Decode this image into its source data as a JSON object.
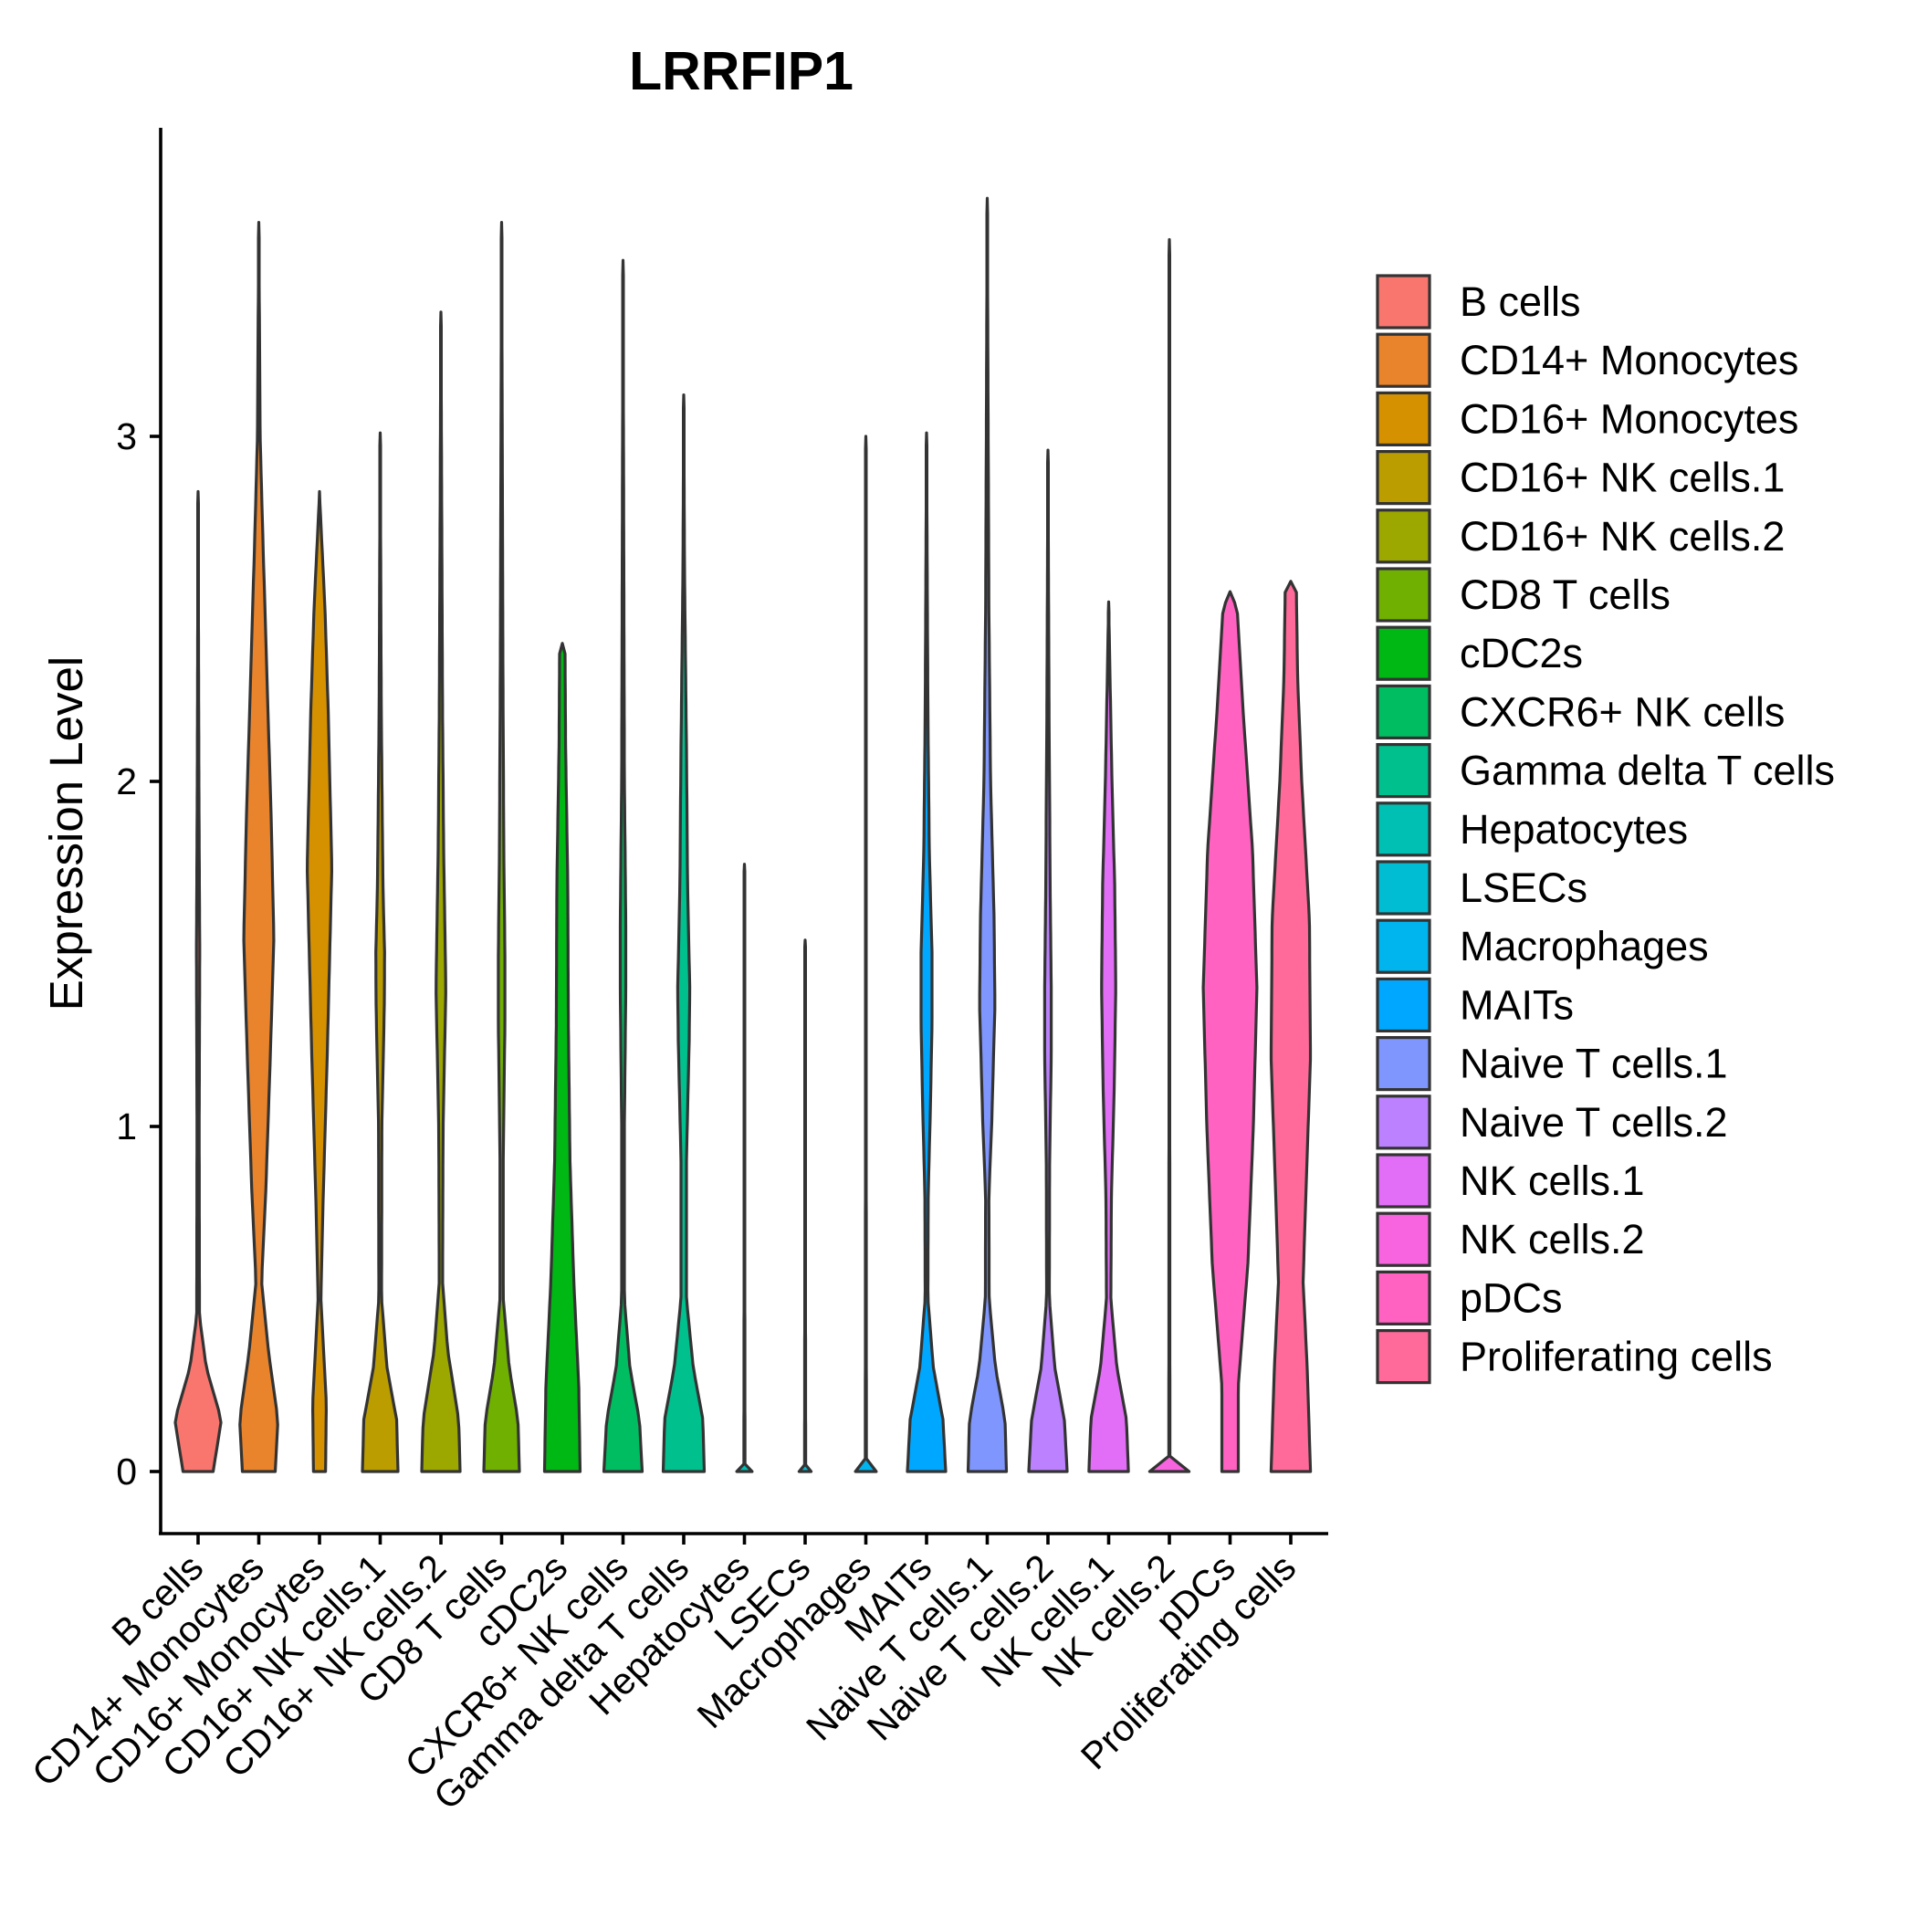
{
  "chart_data": {
    "type": "violin",
    "title": "LRRFIP1",
    "xlabel": "",
    "ylabel": "Expression Level",
    "ylim": [
      -0.18,
      3.8
    ],
    "yticks": [
      0,
      1,
      2,
      3
    ],
    "legend_position": "right",
    "categories": [
      {
        "name": "B cells",
        "color": "#F8766D",
        "max": 2.84,
        "profile": [
          [
            0,
            0.55
          ],
          [
            0.15,
            0.85
          ],
          [
            0.3,
            0.3
          ],
          [
            0.45,
            0.05
          ],
          [
            1.0,
            0.04
          ],
          [
            1.5,
            0.06
          ],
          [
            2.0,
            0.03
          ],
          [
            2.84,
            0
          ]
        ]
      },
      {
        "name": "CD14+ Monocytes",
        "color": "#E58700",
        "max": 3.62,
        "profile": [
          [
            0,
            0.6
          ],
          [
            0.15,
            0.7
          ],
          [
            0.35,
            0.35
          ],
          [
            0.55,
            0.1
          ],
          [
            0.8,
            0.25
          ],
          [
            1.2,
            0.42
          ],
          [
            1.55,
            0.55
          ],
          [
            1.9,
            0.45
          ],
          [
            2.3,
            0.3
          ],
          [
            2.7,
            0.15
          ],
          [
            3.0,
            0.05
          ],
          [
            3.62,
            0
          ]
        ]
      },
      {
        "name": "CD16+ Monocytes",
        "color": "#C99800",
        "max": 2.84,
        "profile": [
          [
            0,
            0.22
          ],
          [
            0.2,
            0.25
          ],
          [
            0.5,
            0.05
          ],
          [
            0.75,
            0.12
          ],
          [
            1.2,
            0.28
          ],
          [
            1.75,
            0.45
          ],
          [
            2.2,
            0.32
          ],
          [
            2.5,
            0.2
          ],
          [
            2.8,
            0.02
          ],
          [
            2.84,
            0
          ]
        ]
      },
      {
        "name": "CD16+ NK cells.1",
        "color": "#A3A500",
        "max": 3.01,
        "profile": [
          [
            0,
            0.65
          ],
          [
            0.15,
            0.6
          ],
          [
            0.3,
            0.25
          ],
          [
            0.5,
            0.05
          ],
          [
            1.0,
            0.06
          ],
          [
            1.35,
            0.15
          ],
          [
            1.5,
            0.16
          ],
          [
            1.7,
            0.1
          ],
          [
            2.2,
            0.04
          ],
          [
            3.01,
            0
          ]
        ]
      },
      {
        "name": "CD16+ NK cells.2",
        "color": "#6BB100",
        "max": 3.36,
        "profile": [
          [
            0,
            0.7
          ],
          [
            0.15,
            0.65
          ],
          [
            0.35,
            0.25
          ],
          [
            0.55,
            0.06
          ],
          [
            1.0,
            0.08
          ],
          [
            1.4,
            0.18
          ],
          [
            1.55,
            0.15
          ],
          [
            1.8,
            0.1
          ],
          [
            2.2,
            0.06
          ],
          [
            3.36,
            0
          ]
        ]
      },
      {
        "name": "CD8 T cells",
        "color": "#00BA38",
        "max": 3.62,
        "profile": [
          [
            0,
            0.65
          ],
          [
            0.15,
            0.6
          ],
          [
            0.3,
            0.28
          ],
          [
            0.5,
            0.06
          ],
          [
            0.9,
            0.06
          ],
          [
            1.3,
            0.12
          ],
          [
            1.5,
            0.12
          ],
          [
            1.8,
            0.08
          ],
          [
            2.3,
            0.05
          ],
          [
            3.62,
            0
          ]
        ]
      },
      {
        "name": "cDC2s",
        "color": "#00BF7D",
        "max": 2.4,
        "profile": [
          [
            0,
            0.65
          ],
          [
            0.25,
            0.6
          ],
          [
            0.55,
            0.42
          ],
          [
            0.9,
            0.28
          ],
          [
            1.3,
            0.22
          ],
          [
            1.7,
            0.2
          ],
          [
            2.1,
            0.12
          ],
          [
            2.38,
            0.1
          ],
          [
            2.4,
            0
          ]
        ]
      },
      {
        "name": "CXCR6+ NK cells",
        "color": "#00C0B8",
        "max": 3.51,
        "profile": [
          [
            0,
            0.7
          ],
          [
            0.15,
            0.6
          ],
          [
            0.3,
            0.25
          ],
          [
            0.5,
            0.05
          ],
          [
            1.0,
            0.05
          ],
          [
            1.4,
            0.1
          ],
          [
            1.6,
            0.1
          ],
          [
            2.0,
            0.05
          ],
          [
            3.51,
            0
          ]
        ]
      },
      {
        "name": "Gamma delta T cells",
        "color": "#00BCD8",
        "max": 3.12,
        "profile": [
          [
            0,
            0.75
          ],
          [
            0.15,
            0.7
          ],
          [
            0.3,
            0.35
          ],
          [
            0.5,
            0.1
          ],
          [
            0.9,
            0.1
          ],
          [
            1.25,
            0.2
          ],
          [
            1.4,
            0.22
          ],
          [
            1.7,
            0.14
          ],
          [
            2.1,
            0.1
          ],
          [
            2.6,
            0.03
          ],
          [
            3.12,
            0
          ]
        ]
      },
      {
        "name": "Hepatocytes",
        "color": "#00B0F6",
        "max": 1.76,
        "profile": [
          [
            0,
            0.28
          ],
          [
            0.01,
            0.02
          ],
          [
            1.76,
            0
          ]
        ]
      },
      {
        "name": "LSECs",
        "color": "#35A2FF",
        "max": 1.54,
        "profile": [
          [
            0,
            0.22
          ],
          [
            0.01,
            0.02
          ],
          [
            1.54,
            0
          ]
        ]
      },
      {
        "name": "Macrophages",
        "color": "#9590FF",
        "max": 3.0,
        "profile": [
          [
            0,
            0.38
          ],
          [
            0.015,
            0.02
          ],
          [
            3.0,
            0
          ]
        ]
      },
      {
        "name": "MAITs",
        "color": "#C77CFF",
        "max": 3.01,
        "profile": [
          [
            0,
            0.7
          ],
          [
            0.15,
            0.6
          ],
          [
            0.3,
            0.25
          ],
          [
            0.5,
            0.05
          ],
          [
            0.8,
            0.06
          ],
          [
            1.05,
            0.14
          ],
          [
            1.3,
            0.2
          ],
          [
            1.5,
            0.2
          ],
          [
            1.8,
            0.1
          ],
          [
            2.2,
            0.05
          ],
          [
            3.01,
            0
          ]
        ]
      },
      {
        "name": "Naive T cells.1",
        "color": "#E76BF3",
        "max": 3.69,
        "profile": [
          [
            0,
            0.7
          ],
          [
            0.15,
            0.65
          ],
          [
            0.3,
            0.3
          ],
          [
            0.5,
            0.07
          ],
          [
            0.8,
            0.06
          ],
          [
            1.0,
            0.16
          ],
          [
            1.35,
            0.28
          ],
          [
            1.6,
            0.25
          ],
          [
            2.0,
            0.12
          ],
          [
            2.5,
            0.06
          ],
          [
            3.69,
            0
          ]
        ]
      },
      {
        "name": "Naive T cells.2",
        "color": "#FA62DB",
        "max": 2.96,
        "profile": [
          [
            0,
            0.7
          ],
          [
            0.15,
            0.6
          ],
          [
            0.3,
            0.25
          ],
          [
            0.5,
            0.05
          ],
          [
            0.9,
            0.06
          ],
          [
            1.2,
            0.12
          ],
          [
            1.4,
            0.12
          ],
          [
            1.7,
            0.08
          ],
          [
            2.2,
            0.04
          ],
          [
            2.96,
            0
          ]
        ]
      },
      {
        "name": "NK cells.1",
        "color": "#FF62BC",
        "max": 2.52,
        "profile": [
          [
            0,
            0.72
          ],
          [
            0.15,
            0.65
          ],
          [
            0.3,
            0.3
          ],
          [
            0.5,
            0.08
          ],
          [
            0.8,
            0.1
          ],
          [
            1.1,
            0.2
          ],
          [
            1.4,
            0.26
          ],
          [
            1.7,
            0.22
          ],
          [
            2.0,
            0.12
          ],
          [
            2.52,
            0
          ]
        ]
      },
      {
        "name": "NK cells.2",
        "color": "#F8766D",
        "max": 3.57,
        "profile": [
          [
            0,
            0.72
          ],
          [
            0.01,
            0.02
          ],
          [
            3.57,
            0
          ]
        ]
      },
      {
        "name": "pDCs",
        "color": "#FF65BC",
        "max": 2.55,
        "profile": [
          [
            0,
            0.3
          ],
          [
            0.25,
            0.3
          ],
          [
            0.6,
            0.65
          ],
          [
            1.0,
            0.85
          ],
          [
            1.4,
            0.98
          ],
          [
            1.8,
            0.82
          ],
          [
            2.2,
            0.48
          ],
          [
            2.5,
            0.26
          ],
          [
            2.55,
            0
          ]
        ]
      },
      {
        "name": "Proliferating cells",
        "color": "#FF6C91",
        "max": 2.58,
        "profile": [
          [
            0,
            0.72
          ],
          [
            0.3,
            0.6
          ],
          [
            0.55,
            0.45
          ],
          [
            0.8,
            0.55
          ],
          [
            1.2,
            0.72
          ],
          [
            1.6,
            0.68
          ],
          [
            2.0,
            0.4
          ],
          [
            2.3,
            0.25
          ],
          [
            2.58,
            0.2
          ],
          [
            2.58,
            0
          ]
        ]
      }
    ],
    "legend_colors": [
      "#F8766D",
      "#E9842C",
      "#D69100",
      "#BC9D00",
      "#9CA700",
      "#6FB000",
      "#00B813",
      "#00BD61",
      "#00C08E",
      "#00C0B4",
      "#00BDD4",
      "#00B5EE",
      "#00A7FF",
      "#7F96FF",
      "#BC81FF",
      "#E26EF7",
      "#F863DF",
      "#FF62C0",
      "#FF6A9A"
    ]
  }
}
